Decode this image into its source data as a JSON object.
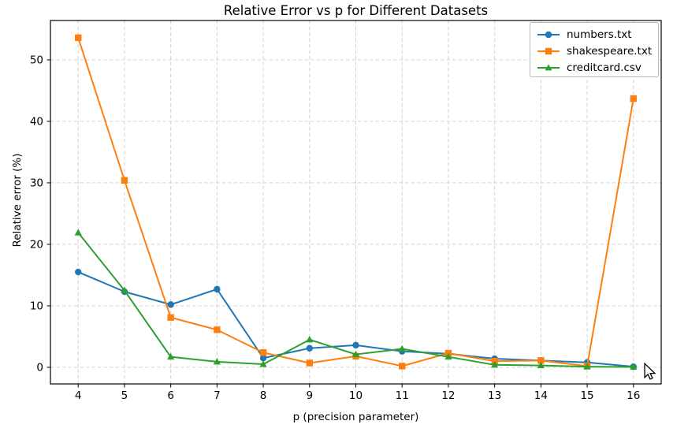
{
  "window": {
    "background_color": "#ffffff"
  },
  "chart_data": {
    "type": "line",
    "title": "Relative Error vs p for Different Datasets",
    "xlabel": "p (precision parameter)",
    "ylabel": "Relative error (%)",
    "x": [
      4,
      5,
      6,
      7,
      8,
      9,
      10,
      11,
      12,
      13,
      14,
      15,
      16
    ],
    "series": [
      {
        "name": "numbers.txt",
        "color": "#1f77b4",
        "marker": "circle",
        "values": [
          15.5,
          12.3,
          10.2,
          12.7,
          1.5,
          3.1,
          3.6,
          2.6,
          2.2,
          1.4,
          1.1,
          0.8,
          0.1
        ]
      },
      {
        "name": "shakespeare.txt",
        "color": "#ff7f0e",
        "marker": "square",
        "values": [
          53.6,
          30.4,
          8.1,
          6.1,
          2.4,
          0.7,
          1.8,
          0.2,
          2.3,
          1.0,
          1.1,
          0.2,
          43.7
        ]
      },
      {
        "name": "creditcard.csv",
        "color": "#2ca02c",
        "marker": "triangle",
        "values": [
          21.9,
          12.5,
          1.7,
          0.9,
          0.5,
          4.5,
          2.1,
          3.0,
          1.7,
          0.4,
          0.3,
          0.1,
          0.05
        ]
      }
    ],
    "xticks": [
      4,
      5,
      6,
      7,
      8,
      9,
      10,
      11,
      12,
      13,
      14,
      15,
      16
    ],
    "yticks": [
      0,
      10,
      20,
      30,
      40,
      50
    ],
    "xlim": [
      3.4,
      16.6
    ],
    "ylim": [
      -2.7,
      56.4
    ],
    "grid": true,
    "grid_style": "dashed",
    "grid_color": "#d2d2d2",
    "spine_color": "#000000",
    "legend_position": "upper right"
  }
}
